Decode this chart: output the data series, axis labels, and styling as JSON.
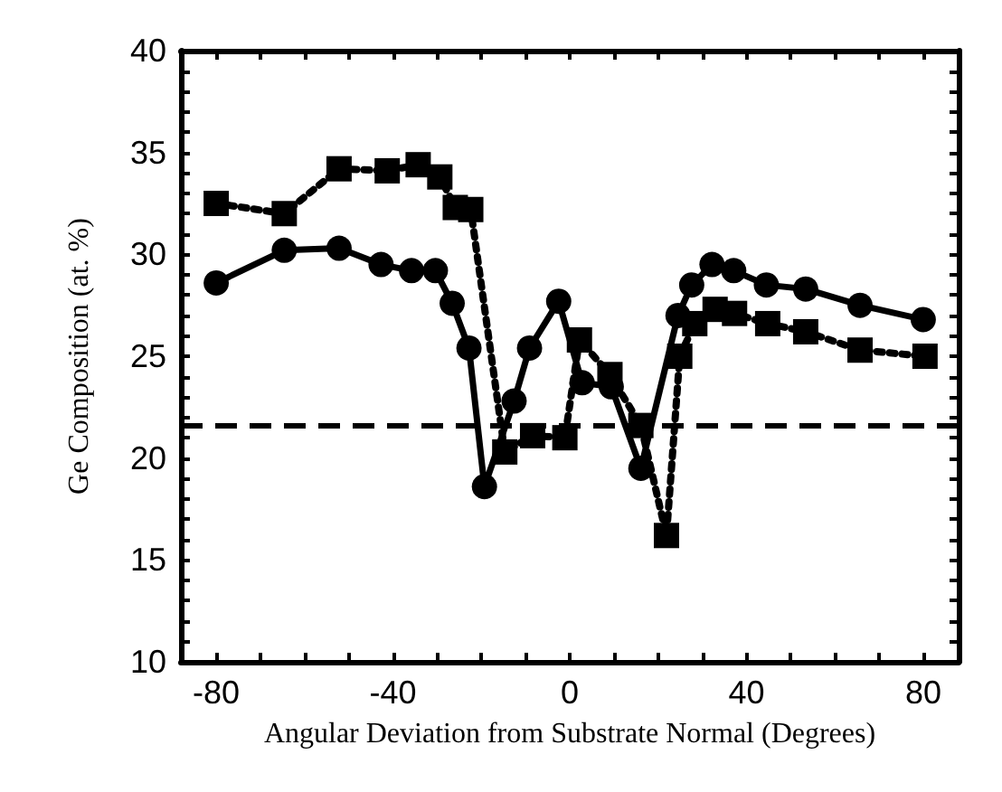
{
  "chart_data": {
    "type": "line",
    "xlabel": "Angular Deviation from Substrate Normal (Degrees)",
    "ylabel": "Ge Composition (at. %)",
    "xlim": [
      -88,
      88
    ],
    "xticks": [
      -80,
      {
        "value": -70,
        "label": null
      },
      {
        "value": -60,
        "label": null
      },
      {
        "value": -50,
        "label": null
      },
      -40,
      {
        "value": -30,
        "label": null
      },
      {
        "value": -20,
        "label": null
      },
      {
        "value": -10,
        "label": null
      },
      0,
      {
        "value": 10,
        "label": null
      },
      {
        "value": 20,
        "label": null
      },
      {
        "value": 30,
        "label": null
      },
      40,
      {
        "value": 50,
        "label": null
      },
      {
        "value": 60,
        "label": null
      },
      {
        "value": 70,
        "label": null
      },
      80
    ],
    "ylim": [
      10,
      40
    ],
    "yticks": [
      10,
      {
        "value": 11,
        "label": null
      },
      {
        "value": 12,
        "label": null
      },
      {
        "value": 13,
        "label": null
      },
      {
        "value": 14,
        "label": null
      },
      15,
      {
        "value": 16,
        "label": null
      },
      {
        "value": 17,
        "label": null
      },
      {
        "value": 18,
        "label": null
      },
      {
        "value": 19,
        "label": null
      },
      20,
      {
        "value": 21,
        "label": null
      },
      {
        "value": 22,
        "label": null
      },
      {
        "value": 23,
        "label": null
      },
      {
        "value": 24,
        "label": null
      },
      25,
      {
        "value": 26,
        "label": null
      },
      {
        "value": 27,
        "label": null
      },
      {
        "value": 28,
        "label": null
      },
      {
        "value": 29,
        "label": null
      },
      30,
      {
        "value": 31,
        "label": null
      },
      {
        "value": 32,
        "label": null
      },
      {
        "value": 33,
        "label": null
      },
      {
        "value": 34,
        "label": null
      },
      35,
      {
        "value": 36,
        "label": null
      },
      {
        "value": 37,
        "label": null
      },
      {
        "value": 38,
        "label": null
      },
      {
        "value": 39,
        "label": null
      },
      40
    ],
    "series": [
      {
        "color": "#000000",
        "marker": "circle",
        "line_style": "solid",
        "x": [
          -80,
          -64.6,
          -52.2,
          -42.7,
          -35.8,
          -30.4,
          -26.6,
          -22.8,
          -19.3,
          -12.6,
          -9.1,
          -2.5,
          2.8,
          9.4,
          16.1,
          24.5,
          27.6,
          32.2,
          37.1,
          44.5,
          53.4,
          65.7,
          80
        ],
        "values": [
          28.6,
          30.2,
          30.3,
          29.5,
          29.2,
          29.2,
          27.6,
          25.4,
          18.6,
          22.8,
          25.4,
          27.7,
          23.7,
          23.5,
          19.5,
          27.0,
          28.5,
          29.5,
          29.2,
          28.5,
          28.3,
          27.5,
          26.8
        ]
      },
      {
        "color": "#000000",
        "marker": "square",
        "line_style": "dotted",
        "x": [
          -80,
          -64.6,
          -52.2,
          -41.3,
          -34.3,
          -29.4,
          -25.9,
          -22.4,
          -14.7,
          -8.4,
          -1.1,
          2.2,
          9.1,
          16.1,
          21.9,
          24.9,
          28.3,
          32.9,
          37.3,
          44.8,
          53.4,
          65.7,
          80.4
        ],
        "values": [
          32.5,
          32.0,
          34.2,
          34.1,
          34.4,
          33.8,
          32.3,
          32.2,
          20.3,
          21.1,
          21.0,
          25.8,
          24.1,
          21.6,
          16.2,
          25.0,
          26.6,
          27.3,
          27.1,
          26.6,
          26.2,
          25.3,
          25.0
        ]
      }
    ],
    "ref_lines": [
      {
        "axis": "y",
        "value": 21.6,
        "color": "#000000",
        "line_style": "dashed"
      }
    ]
  }
}
